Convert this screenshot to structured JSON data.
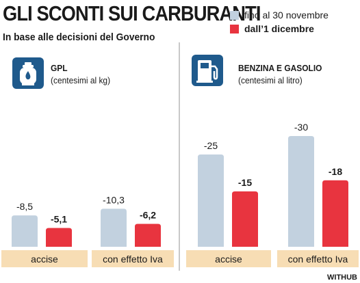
{
  "title": "GLI SCONTI SUI CARBURANTI",
  "subtitle": "In base alle decisioni del Governo",
  "legend": {
    "items": [
      {
        "label": "fino al 30 novembre",
        "color": "#c2d1df"
      },
      {
        "label": "dall’1 dicembre",
        "color": "#e8343f"
      }
    ]
  },
  "panels": [
    {
      "title": "GPL",
      "unit": "(centesimi al kg)",
      "icon": "gas-cylinder-icon"
    },
    {
      "title": "BENZINA E GASOLIO",
      "unit": "(centesimi al litro)",
      "icon": "fuel-pump-icon"
    }
  ],
  "credit": "WITHUB",
  "colors": {
    "before": "#c2d1df",
    "after": "#e8343f",
    "band": "#f7ddb4",
    "icon_bg": "#1f5a8c"
  },
  "chart_data": [
    {
      "type": "bar",
      "title": "GPL",
      "ylabel": "(centesimi al kg)",
      "categories": [
        "accise",
        "con effetto Iva"
      ],
      "series": [
        {
          "name": "fino al 30 novembre",
          "values": [
            -8.5,
            -10.3
          ],
          "labels": [
            "-8,5",
            "-10,3"
          ]
        },
        {
          "name": "dall’1 dicembre",
          "values": [
            -5.1,
            -6.2
          ],
          "labels": [
            "-5,1",
            "-6,2"
          ]
        }
      ]
    },
    {
      "type": "bar",
      "title": "BENZINA E GASOLIO",
      "ylabel": "(centesimi al litro)",
      "categories": [
        "accise",
        "con effetto Iva"
      ],
      "series": [
        {
          "name": "fino al 30 novembre",
          "values": [
            -25,
            -30
          ],
          "labels": [
            "-25",
            "-30"
          ]
        },
        {
          "name": "dall’1 dicembre",
          "values": [
            -15,
            -18
          ],
          "labels": [
            "-15",
            "-18"
          ]
        }
      ]
    }
  ]
}
